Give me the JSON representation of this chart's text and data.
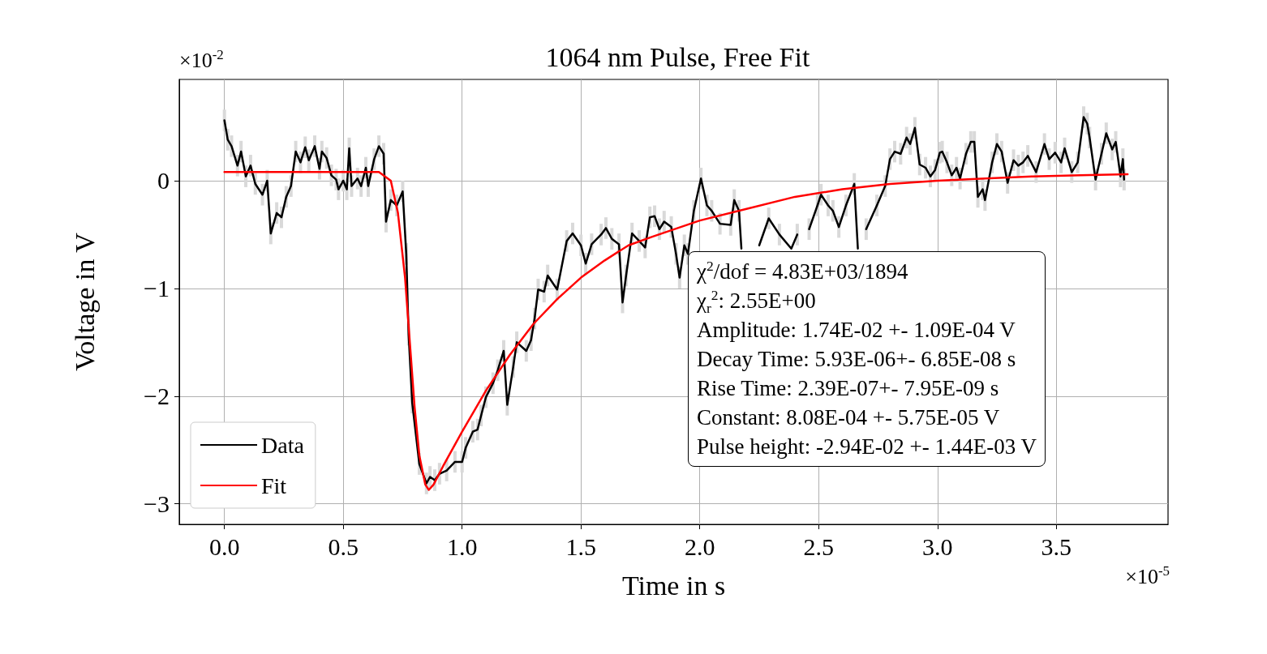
{
  "chart_data": {
    "type": "line",
    "title": "1064 nm Pulse, Free Fit",
    "xlabel": "Time in s",
    "ylabel": "Voltage in V",
    "xlim": [
      -0.19,
      3.97
    ],
    "ylim": [
      -3.19,
      0.94
    ],
    "xticks": [
      {
        "value": 0,
        "label": "0.0"
      },
      0.5,
      {
        "value": 1,
        "label": "1.0"
      },
      1.5,
      {
        "value": 2,
        "label": "2.0"
      },
      2.5,
      {
        "value": 3,
        "label": "3.0"
      },
      3.5
    ],
    "yticks": [
      {
        "value": -3,
        "label": "−3"
      },
      {
        "value": -2,
        "label": "−2"
      },
      {
        "value": -1,
        "label": "−1"
      },
      0
    ],
    "grid": true,
    "legend": "bottom left",
    "marker": "none",
    "line_style": "solid",
    "annotations": [
      "×10$^{-2}$",
      "×10$^{-5}$",
      "χ$^{2}$/dof = 4.83E+03/1894",
      "χ$_{r}$$^{2}$: 2.55E+00",
      "Amplitude: 1.74E-02 +- 1.09E-04 V",
      "Decay Time: 5.93E-06+- 6.85E-08 s",
      "Rise Time: 2.39E-07+- 7.95E-09 s",
      "Constant: 8.08E-04 +- 5.75E-05 V",
      "Pulse height: -2.94E-02 +- 1.44E-03 V"
    ],
    "series": [
      {
        "name": "Data",
        "color": "#000000",
        "x": [
          0,
          0.014,
          0.03,
          0.055,
          0.07,
          0.09,
          0.11,
          0.13,
          0.16,
          0.18,
          0.195,
          0.22,
          0.24,
          0.26,
          0.28,
          0.3,
          0.32,
          0.34,
          0.355,
          0.38,
          0.4,
          0.41,
          0.43,
          0.45,
          0.47,
          0.48,
          0.5,
          0.515,
          0.525,
          0.535,
          0.56,
          0.575,
          0.595,
          0.605,
          0.63,
          0.65,
          0.67,
          0.68,
          0.7,
          0.725,
          0.75,
          0.765,
          0.775,
          0.79,
          0.82,
          0.85,
          0.865,
          0.885,
          0.905,
          0.935,
          0.97,
          1.0,
          1.015,
          1.045,
          1.065,
          1.08,
          1.1,
          1.13,
          1.15,
          1.175,
          1.19,
          1.215,
          1.23,
          1.27,
          1.29,
          1.305,
          1.32,
          1.345,
          1.36,
          1.4,
          1.44,
          1.465,
          1.5,
          1.52,
          1.545,
          1.585,
          1.605,
          1.63,
          1.66,
          1.675,
          1.69,
          1.715,
          1.745,
          1.77,
          1.79,
          1.81,
          1.83,
          1.85,
          1.88,
          1.9,
          1.915,
          1.935,
          1.95,
          1.975,
          2.005,
          2.03,
          2.05,
          2.085,
          2.13,
          2.145,
          2.165,
          2.175,
          2.21,
          2.25,
          2.29,
          2.335,
          2.385,
          2.41,
          2.44,
          2.46,
          2.495,
          2.51,
          2.54,
          2.56,
          2.585,
          2.615,
          2.65,
          2.665,
          2.68,
          2.7,
          2.745,
          2.78,
          2.8,
          2.82,
          2.845,
          2.87,
          2.885,
          2.905,
          2.925,
          2.95,
          2.97,
          2.99,
          3.01,
          3.02,
          3.04,
          3.06,
          3.08,
          3.095,
          3.12,
          3.14,
          3.155,
          3.17,
          3.19,
          3.2,
          3.23,
          3.25,
          3.27,
          3.295,
          3.32,
          3.34,
          3.36,
          3.38,
          3.415,
          3.45,
          3.47,
          3.495,
          3.52,
          3.535,
          3.565,
          3.59,
          3.615,
          3.63,
          3.64,
          3.665,
          3.69,
          3.71,
          3.735,
          3.75,
          3.77,
          3.78,
          3.785
        ],
        "values": [
          0.56,
          0.38,
          0.32,
          0.14,
          0.27,
          0.04,
          0.14,
          -0.03,
          -0.13,
          0,
          -0.49,
          -0.3,
          -0.34,
          -0.15,
          -0.05,
          0.27,
          0.17,
          0.31,
          0.19,
          0.32,
          0.11,
          0.27,
          0.21,
          0.05,
          0.01,
          -0.08,
          0,
          -0.08,
          0.3,
          -0.05,
          0.02,
          -0.05,
          0.12,
          -0.05,
          0.2,
          0.32,
          0.25,
          -0.38,
          -0.18,
          -0.23,
          -0.1,
          -0.68,
          -1.43,
          -2.06,
          -2.63,
          -2.81,
          -2.75,
          -2.78,
          -2.72,
          -2.69,
          -2.61,
          -2.61,
          -2.48,
          -2.33,
          -2.31,
          -2.18,
          -2.01,
          -1.88,
          -1.76,
          -1.58,
          -2.08,
          -1.73,
          -1.5,
          -1.58,
          -1.48,
          -1.28,
          -1.01,
          -1.03,
          -0.88,
          -1.01,
          -0.56,
          -0.49,
          -0.6,
          -0.77,
          -0.59,
          -0.5,
          -0.44,
          -0.54,
          -0.59,
          -1.13,
          -0.88,
          -0.49,
          -0.56,
          -0.62,
          -0.34,
          -0.33,
          -0.45,
          -0.38,
          -0.43,
          -0.68,
          -0.9,
          -0.6,
          -0.68,
          -0.28,
          0.02,
          -0.23,
          -0.28,
          -0.4,
          -0.41,
          -0.18,
          -0.28,
          -0.63,
          null,
          -0.6,
          -0.35,
          -0.5,
          -0.63,
          -0.5,
          null,
          -0.45,
          -0.23,
          -0.13,
          -0.23,
          -0.28,
          -0.43,
          -0.23,
          -0.03,
          -0.63,
          null,
          -0.45,
          -0.23,
          -0.05,
          0.2,
          0.27,
          0.25,
          0.4,
          0.34,
          0.49,
          0.15,
          0.12,
          0.04,
          0.1,
          0.26,
          0.27,
          0.17,
          0.05,
          0.12,
          0.02,
          0.25,
          0.36,
          0.36,
          -0.15,
          -0.08,
          -0.18,
          0.17,
          0.34,
          0.27,
          -0.02,
          0.19,
          0.14,
          0.17,
          0.23,
          0.08,
          0.34,
          0.2,
          0.26,
          0.17,
          0.3,
          0.08,
          0.17,
          0.59,
          0.53,
          0.4,
          0.01,
          0.25,
          0.44,
          0.29,
          0.36,
          0.04,
          0.2,
          0.01
        ],
        "errors": [
          0.1,
          0.1,
          0.1,
          0.1,
          0.1,
          0.1,
          0.1,
          0.1,
          0.1,
          0.1,
          0.1,
          0.1,
          0.1,
          0.1,
          0.1,
          0.1,
          0.1,
          0.1,
          0.1,
          0.1,
          0.1,
          0.1,
          0.1,
          0.1,
          0.1,
          0.1,
          0.1,
          0.1,
          0.1,
          0.1,
          0.1,
          0.1,
          0.1,
          0.1,
          0.1,
          0.1,
          0.1,
          0.1,
          0.1,
          0.1,
          0.1,
          0.1,
          0.1,
          0.1,
          0.1,
          0.1,
          0.1,
          0.1,
          0.1,
          0.1,
          0.1,
          0.1,
          0.1,
          0.1,
          0.1,
          0.1,
          0.1,
          0.1,
          0.1,
          0.1,
          0.1,
          0.1,
          0.1,
          0.1,
          0.1,
          0.1,
          0.1,
          0.1,
          0.1,
          0.1,
          0.1,
          0.1,
          0.1,
          0.1,
          0.1,
          0.1,
          0.1,
          0.1,
          0.1,
          0.1,
          0.1,
          0.1,
          0.1,
          0.1,
          0.1,
          0.1,
          0.1,
          0.1,
          0.1,
          0.1,
          0.1,
          0.1,
          0.1,
          0.1,
          0.1,
          0.1,
          0.1,
          0.1,
          0.1,
          0.1,
          0.1,
          null,
          null,
          null,
          0.1,
          0.1,
          null,
          0.1,
          null,
          0.1,
          0.1,
          0.1,
          0.1,
          0.1,
          0.1,
          0.1,
          0.1,
          null,
          null,
          0.1,
          0.1,
          0.1,
          0.1,
          0.1,
          0.1,
          0.1,
          0.1,
          0.1,
          0.1,
          0.1,
          0.1,
          0.1,
          0.1,
          0.1,
          0.1,
          0.1,
          0.1,
          0.1,
          0.1,
          0.1,
          0.1,
          0.1,
          0.1,
          0.1,
          0.1,
          0.1,
          0.1,
          0.1,
          0.1,
          0.1,
          0.1,
          0.1,
          0.1,
          0.1,
          0.1,
          0.1,
          0.1,
          0.1,
          0.1,
          0.1,
          0.1,
          0.1,
          0.1,
          0.1,
          0.1,
          0.1,
          0.1,
          0.1,
          0.1,
          0.1,
          0.1
        ]
      },
      {
        "name": "Fit",
        "color": "#ff0000",
        "x": [
          0,
          0.65,
          0.7,
          0.73,
          0.76,
          0.78,
          0.8,
          0.82,
          0.845,
          0.86,
          0.88,
          0.92,
          1.0,
          1.1,
          1.2,
          1.3,
          1.4,
          1.5,
          1.6,
          1.7,
          1.8,
          2.0,
          2.2,
          2.4,
          2.6,
          2.8,
          3.0,
          3.2,
          3.4,
          3.6,
          3.8
        ],
        "values": [
          0.08,
          0.08,
          0.0,
          -0.3,
          -0.9,
          -1.5,
          -2.1,
          -2.55,
          -2.82,
          -2.87,
          -2.82,
          -2.65,
          -2.33,
          -1.95,
          -1.62,
          -1.33,
          -1.1,
          -0.9,
          -0.74,
          -0.6,
          -0.52,
          -0.37,
          -0.26,
          -0.15,
          -0.08,
          -0.03,
          0.0,
          0.02,
          0.04,
          0.05,
          0.06
        ]
      }
    ]
  }
}
